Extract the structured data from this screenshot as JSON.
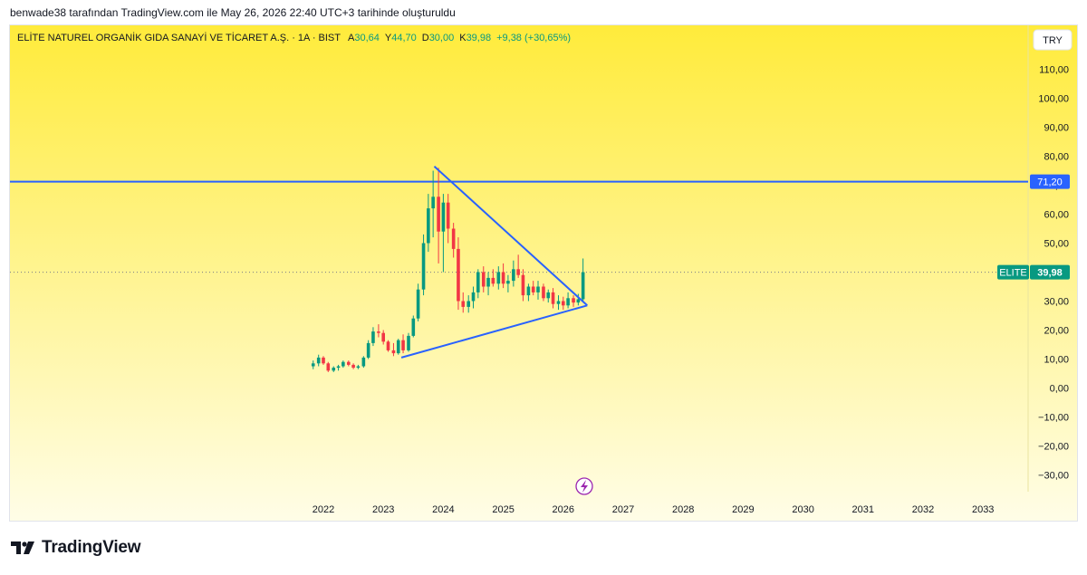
{
  "header_note": "benwade38 tarafından TradingView.com ile May 26, 2026 22:40 UTC+3 tarihinde oluşturuldu",
  "legend": {
    "title": "ELİTE NATUREL ORGANİK GIDA SANAYİ VE TİCARET A.Ş. · 1A · BIST",
    "open_label": "A",
    "open": "30,64",
    "high_label": "Y",
    "high": "44,70",
    "low_label": "D",
    "low": "30,00",
    "close_label": "K",
    "close": "39,98",
    "change": "+9,38 (+30,65%)"
  },
  "currency_button": "TRY",
  "price_tag": {
    "symbol": "ELITE",
    "value": "39,98"
  },
  "hline_tag": "71,20",
  "brand": "TradingView",
  "colors": {
    "up": "#089981",
    "down": "#f23645",
    "line": "#2962ff",
    "bg_top": "#ffeb3b",
    "bg_bottom": "#fffde7",
    "tag": "#089981"
  },
  "chart_data": {
    "type": "candlestick",
    "timeframe": "1A",
    "x_ticks": [
      "2022",
      "2023",
      "2024",
      "2025",
      "2026",
      "2027",
      "2028",
      "2029",
      "2030",
      "2031",
      "2032",
      "2033"
    ],
    "y_ticks": [
      "110,00",
      "100,00",
      "90,00",
      "80,00",
      "70,00",
      "60,00",
      "50,00",
      "40,00",
      "30,00",
      "20,00",
      "10,00",
      "0,00",
      "−10,00",
      "−20,00",
      "−30,00"
    ],
    "ylim": [
      -34,
      118
    ],
    "candles": [
      {
        "t": 2021.83,
        "o": 7.5,
        "h": 9.5,
        "l": 6.5,
        "c": 8.5
      },
      {
        "t": 2021.92,
        "o": 8.5,
        "h": 11.5,
        "l": 7.5,
        "c": 10.5
      },
      {
        "t": 2022.0,
        "o": 10.5,
        "h": 11.0,
        "l": 8.0,
        "c": 8.5
      },
      {
        "t": 2022.08,
        "o": 8.5,
        "h": 9.0,
        "l": 5.5,
        "c": 6.0
      },
      {
        "t": 2022.17,
        "o": 6.0,
        "h": 7.5,
        "l": 5.5,
        "c": 7.0
      },
      {
        "t": 2022.25,
        "o": 7.0,
        "h": 8.0,
        "l": 6.0,
        "c": 7.5
      },
      {
        "t": 2022.33,
        "o": 7.5,
        "h": 9.5,
        "l": 7.0,
        "c": 9.0
      },
      {
        "t": 2022.42,
        "o": 9.0,
        "h": 9.5,
        "l": 7.5,
        "c": 8.0
      },
      {
        "t": 2022.5,
        "o": 8.0,
        "h": 8.5,
        "l": 6.5,
        "c": 7.0
      },
      {
        "t": 2022.58,
        "o": 7.0,
        "h": 8.0,
        "l": 6.5,
        "c": 7.5
      },
      {
        "t": 2022.67,
        "o": 7.5,
        "h": 11.0,
        "l": 7.0,
        "c": 10.5
      },
      {
        "t": 2022.75,
        "o": 10.5,
        "h": 16.5,
        "l": 10.0,
        "c": 15.5
      },
      {
        "t": 2022.83,
        "o": 15.5,
        "h": 21.0,
        "l": 14.5,
        "c": 19.5
      },
      {
        "t": 2022.92,
        "o": 19.5,
        "h": 22.0,
        "l": 17.5,
        "c": 19.0
      },
      {
        "t": 2023.0,
        "o": 19.0,
        "h": 20.0,
        "l": 15.0,
        "c": 16.0
      },
      {
        "t": 2023.08,
        "o": 16.0,
        "h": 16.5,
        "l": 12.5,
        "c": 13.0
      },
      {
        "t": 2023.17,
        "o": 13.0,
        "h": 15.5,
        "l": 11.0,
        "c": 12.0
      },
      {
        "t": 2023.25,
        "o": 12.0,
        "h": 17.0,
        "l": 11.5,
        "c": 16.5
      },
      {
        "t": 2023.33,
        "o": 16.5,
        "h": 18.5,
        "l": 12.0,
        "c": 13.0
      },
      {
        "t": 2023.42,
        "o": 13.0,
        "h": 19.0,
        "l": 12.5,
        "c": 18.0
      },
      {
        "t": 2023.5,
        "o": 18.0,
        "h": 25.0,
        "l": 17.5,
        "c": 24.0
      },
      {
        "t": 2023.58,
        "o": 24.0,
        "h": 36.0,
        "l": 23.0,
        "c": 34.0
      },
      {
        "t": 2023.67,
        "o": 34.0,
        "h": 53.0,
        "l": 32.0,
        "c": 50.0
      },
      {
        "t": 2023.75,
        "o": 50.0,
        "h": 67.0,
        "l": 47.0,
        "c": 62.0
      },
      {
        "t": 2023.83,
        "o": 62.0,
        "h": 75.0,
        "l": 52.0,
        "c": 66.0
      },
      {
        "t": 2023.92,
        "o": 66.0,
        "h": 76.0,
        "l": 43.0,
        "c": 54.0
      },
      {
        "t": 2024.0,
        "o": 54.0,
        "h": 67.0,
        "l": 40.0,
        "c": 64.0
      },
      {
        "t": 2024.08,
        "o": 64.0,
        "h": 67.0,
        "l": 50.0,
        "c": 55.0
      },
      {
        "t": 2024.17,
        "o": 55.0,
        "h": 57.0,
        "l": 45.0,
        "c": 48.0
      },
      {
        "t": 2024.25,
        "o": 48.0,
        "h": 52.0,
        "l": 27.0,
        "c": 30.0
      },
      {
        "t": 2024.33,
        "o": 30.0,
        "h": 33.0,
        "l": 26.0,
        "c": 28.0
      },
      {
        "t": 2024.42,
        "o": 28.0,
        "h": 32.0,
        "l": 26.0,
        "c": 30.0
      },
      {
        "t": 2024.5,
        "o": 30.0,
        "h": 35.0,
        "l": 27.5,
        "c": 33.0
      },
      {
        "t": 2024.58,
        "o": 33.0,
        "h": 41.0,
        "l": 31.0,
        "c": 40.0
      },
      {
        "t": 2024.67,
        "o": 40.0,
        "h": 42.0,
        "l": 33.0,
        "c": 35.0
      },
      {
        "t": 2024.75,
        "o": 35.0,
        "h": 40.0,
        "l": 32.0,
        "c": 38.0
      },
      {
        "t": 2024.83,
        "o": 38.0,
        "h": 41.0,
        "l": 35.0,
        "c": 36.0
      },
      {
        "t": 2024.92,
        "o": 36.0,
        "h": 42.0,
        "l": 34.0,
        "c": 40.0
      },
      {
        "t": 2025.0,
        "o": 40.0,
        "h": 43.0,
        "l": 34.5,
        "c": 36.0
      },
      {
        "t": 2025.08,
        "o": 36.0,
        "h": 39.0,
        "l": 33.0,
        "c": 37.0
      },
      {
        "t": 2025.17,
        "o": 37.0,
        "h": 44.0,
        "l": 35.0,
        "c": 41.0
      },
      {
        "t": 2025.25,
        "o": 41.0,
        "h": 46.0,
        "l": 38.0,
        "c": 39.0
      },
      {
        "t": 2025.33,
        "o": 39.0,
        "h": 41.0,
        "l": 30.0,
        "c": 32.0
      },
      {
        "t": 2025.42,
        "o": 32.0,
        "h": 36.0,
        "l": 30.0,
        "c": 35.0
      },
      {
        "t": 2025.5,
        "o": 35.0,
        "h": 37.0,
        "l": 32.0,
        "c": 33.0
      },
      {
        "t": 2025.58,
        "o": 33.0,
        "h": 37.0,
        "l": 30.5,
        "c": 35.0
      },
      {
        "t": 2025.67,
        "o": 35.0,
        "h": 36.0,
        "l": 30.0,
        "c": 31.0
      },
      {
        "t": 2025.75,
        "o": 31.0,
        "h": 34.0,
        "l": 29.5,
        "c": 33.0
      },
      {
        "t": 2025.83,
        "o": 33.0,
        "h": 34.5,
        "l": 27.5,
        "c": 29.0
      },
      {
        "t": 2025.92,
        "o": 29.0,
        "h": 32.0,
        "l": 27.0,
        "c": 30.0
      },
      {
        "t": 2026.0,
        "o": 30.0,
        "h": 31.5,
        "l": 27.0,
        "c": 28.5
      },
      {
        "t": 2026.08,
        "o": 28.5,
        "h": 33.0,
        "l": 27.5,
        "c": 31.0
      },
      {
        "t": 2026.17,
        "o": 31.0,
        "h": 32.0,
        "l": 28.0,
        "c": 29.5
      },
      {
        "t": 2026.25,
        "o": 29.5,
        "h": 32.5,
        "l": 28.5,
        "c": 30.64
      },
      {
        "t": 2026.33,
        "o": 30.64,
        "h": 44.7,
        "l": 30.0,
        "c": 39.98
      }
    ],
    "horizontal_line": 71.2,
    "triangle_upper": [
      [
        2023.85,
        76.5
      ],
      [
        2026.4,
        28.5
      ]
    ],
    "triangle_lower": [
      [
        2023.3,
        10.5
      ],
      [
        2026.4,
        28.5
      ]
    ]
  }
}
